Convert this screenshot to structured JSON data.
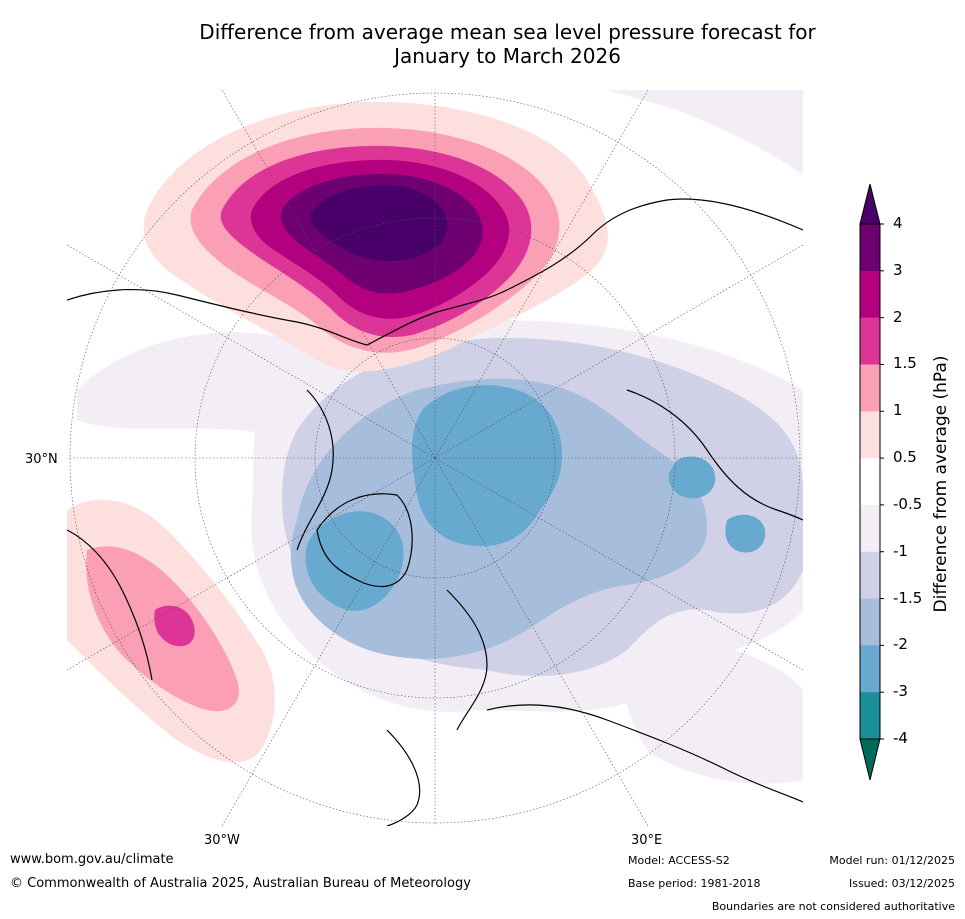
{
  "title": {
    "line1": "Difference from average mean sea level pressure forecast for",
    "line2": "January to March 2026"
  },
  "map": {
    "projection": "north polar stereographic",
    "graticule_labels": {
      "left": "30°N",
      "bottom_left": "30°W",
      "bottom_right": "30°E"
    },
    "regions": [
      {
        "name": "north-pacific-high",
        "max_anomaly_hpa": 4,
        "sign": "positive"
      },
      {
        "name": "hawaii-subtropical-high",
        "max_anomaly_hpa": 2,
        "sign": "positive"
      },
      {
        "name": "arctic-low",
        "min_anomaly_hpa": -3,
        "sign": "negative"
      },
      {
        "name": "greenland-low",
        "min_anomaly_hpa": -3,
        "sign": "negative"
      },
      {
        "name": "central-asia-low",
        "min_anomaly_hpa": -3,
        "sign": "negative"
      }
    ]
  },
  "colorbar": {
    "label": "Difference from average (hPa)",
    "ticks": [
      "4",
      "3",
      "2",
      "1.5",
      "1",
      "0.5",
      "-0.5",
      "-1",
      "-1.5",
      "-2",
      "-3",
      "-4"
    ],
    "bins": [
      {
        "range": "3 to 4",
        "color": "#6e0071"
      },
      {
        "range": "2 to 3",
        "color": "#b3007e"
      },
      {
        "range": "1.5 to 2",
        "color": "#dd3497"
      },
      {
        "range": "1 to 1.5",
        "color": "#fa9fb5"
      },
      {
        "range": "0.5 to 1",
        "color": "#fde0dd"
      },
      {
        "range": "-0.5 to 0.5",
        "color": "#ffffff"
      },
      {
        "range": "-1 to -0.5",
        "color": "#f3eef6"
      },
      {
        "range": "-1.5 to -1",
        "color": "#d0d1e6"
      },
      {
        "range": "-2 to -1.5",
        "color": "#a6bddb"
      },
      {
        "range": "-3 to -2",
        "color": "#67a9cf"
      },
      {
        "range": "-4 to -3",
        "color": "#1c9099"
      }
    ],
    "extend_top_color": "#49006a",
    "extend_bottom_color": "#016c59"
  },
  "footer": {
    "website": "www.bom.gov.au/climate",
    "copyright": "© Commonwealth of Australia 2025, Australian Bureau of Meteorology",
    "model": "Model: ACCESS-S2",
    "base_period": "Base period: 1981-2018",
    "model_run": "Model run: 01/12/2025",
    "issued": "Issued: 03/12/2025",
    "disclaimer": "Boundaries are not considered authoritative"
  }
}
